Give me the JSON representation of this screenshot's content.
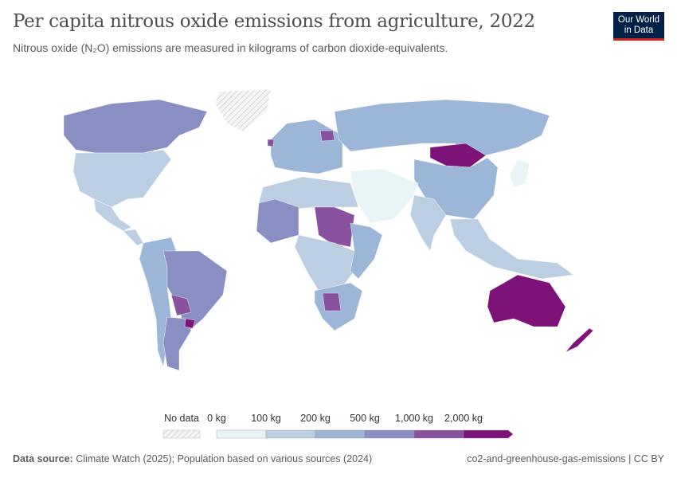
{
  "header": {
    "title": "Per capita nitrous oxide emissions from agriculture, 2022",
    "subtitle": "Nitrous oxide (N₂O) emissions are measured in kilograms of carbon dioxide-equivalents.",
    "logo": {
      "line1": "Our World",
      "line2": "in Data"
    }
  },
  "legend": {
    "no_data_label": "No data",
    "bins": [
      "0 kg",
      "100 kg",
      "200 kg",
      "500 kg",
      "1,000 kg",
      "2,000 kg"
    ],
    "colors": [
      "#e9f4f7",
      "#bccfe2",
      "#9bb6d6",
      "#8a8fc3",
      "#88529f",
      "#7d1378"
    ],
    "no_data_color": "#e0e0e0"
  },
  "map_data": {
    "bin_by_region": {
      "Canada": 3,
      "United States": 1,
      "Mexico": 1,
      "Central America": 1,
      "Brazil": 3,
      "Argentina": 3,
      "Paraguay": 4,
      "Uruguay": 5,
      "Andes": 2,
      "Greenland": -1,
      "Europe": 2,
      "Ireland": 4,
      "Belarus": 4,
      "Russia": 2,
      "Mongolia": 5,
      "China": 2,
      "India": 1,
      "Middle East": 0,
      "North Africa": 1,
      "Sahel": 3,
      "Sudan/Chad": 4,
      "Central Africa": 1,
      "East Africa": 2,
      "Southern Africa": 2,
      "Botswana": 4,
      "Southeast Asia": 1,
      "Japan": 0,
      "Australia": 5,
      "New Zealand": 5
    }
  },
  "footer": {
    "source_label": "Data source:",
    "source_text": "Climate Watch (2025); Population based on various sources (2024)",
    "right_text": "co2-and-greenhouse-gas-emissions | CC BY"
  }
}
